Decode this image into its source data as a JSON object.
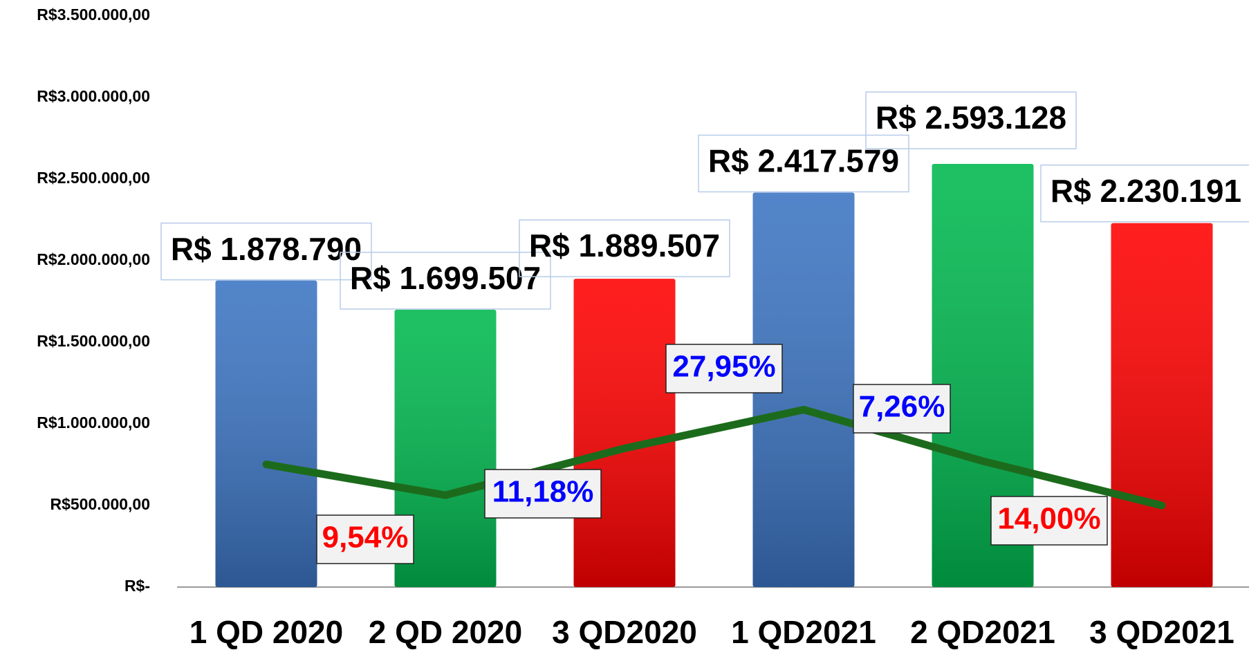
{
  "chart_data": {
    "type": "bar",
    "categories": [
      "1 QD 2020",
      "2 QD 2020",
      "3 QD2020",
      "1 QD2021",
      "2 QD2021",
      "3 QD2021"
    ],
    "values": [
      1878790,
      1699507,
      1889507,
      2417579,
      2593128,
      2230191
    ],
    "value_labels": [
      "R$ 1.878.790",
      "R$ 1.699.507",
      "R$ 1.889.507",
      "R$ 2.417.579",
      "R$ 2.593.128",
      "R$ 2.230.191"
    ],
    "colors": [
      "#3b74c2",
      "#00b84f",
      "#ff0000",
      "#3b74c2",
      "#00b84f",
      "#ff0000"
    ],
    "ylim": [
      0,
      3500000
    ],
    "yticks": [
      {
        "value": 0,
        "label": "R$-"
      },
      {
        "value": 500000,
        "label": "R$500.000,00"
      },
      {
        "value": 1000000,
        "label": "R$1.000.000,00"
      },
      {
        "value": 1500000,
        "label": "R$1.500.000,00"
      },
      {
        "value": 2000000,
        "label": "R$2.000.000,00"
      },
      {
        "value": 2500000,
        "label": "R$2.500.000,00"
      },
      {
        "value": 3000000,
        "label": "R$3.000.000,00"
      },
      {
        "value": 3500000,
        "label": "R$3.500.000,00"
      }
    ],
    "line": {
      "color": "#1c6b1c",
      "values": [
        752000,
        563000,
        850000,
        1087000,
        772000,
        500000
      ]
    },
    "annotations": [
      {
        "text": "9,54%",
        "color": "#ff0000"
      },
      {
        "text": "11,18%",
        "color": "#0000ff"
      },
      {
        "text": "27,95%",
        "color": "#0000ff"
      },
      {
        "text": "7,26%",
        "color": "#0000ff"
      },
      {
        "text": "14,00%",
        "color": "#ff0000"
      }
    ]
  }
}
